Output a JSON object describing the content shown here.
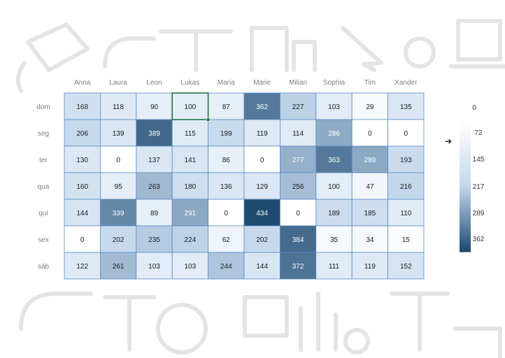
{
  "chart_data": {
    "type": "heatmap",
    "columns": [
      "Anna",
      "Laura",
      "Leon",
      "Lukas",
      "Maria",
      "Marie",
      "Milian",
      "Sophia",
      "Tim",
      "Xander"
    ],
    "rows": [
      "dom",
      "seg",
      "ter",
      "qua",
      "qui",
      "sex",
      "sáb"
    ],
    "values": [
      [
        168,
        118,
        90,
        100,
        87,
        362,
        227,
        103,
        29,
        135
      ],
      [
        206,
        139,
        389,
        115,
        199,
        119,
        114,
        286,
        0,
        0
      ],
      [
        130,
        0,
        137,
        141,
        86,
        0,
        277,
        363,
        289,
        193
      ],
      [
        160,
        95,
        263,
        180,
        136,
        129,
        256,
        100,
        47,
        216
      ],
      [
        144,
        339,
        89,
        291,
        0,
        434,
        0,
        189,
        185,
        110
      ],
      [
        0,
        202,
        235,
        224,
        62,
        202,
        384,
        35,
        34,
        15
      ],
      [
        122,
        261,
        103,
        103,
        244,
        144,
        372,
        111,
        119,
        152
      ]
    ],
    "selected_cell": {
      "row": "dom",
      "column": "Lukas"
    },
    "color_scale": {
      "low": "#ffffff",
      "mid": "#c3d7ec",
      "high": "#1e4b72",
      "labels": [
        "0",
        "72",
        "145",
        "217",
        "289",
        "362"
      ]
    },
    "legend_placement": "right",
    "legend_arrow": "➔"
  },
  "colors": {
    "grid_border": "#5b8cc6",
    "selection_border": "#217346",
    "label_text": "#7f7f7f",
    "dark_text": "#ffffff",
    "light_text": "#1a1a1a",
    "doodle_stroke": "#e4e4e4"
  }
}
